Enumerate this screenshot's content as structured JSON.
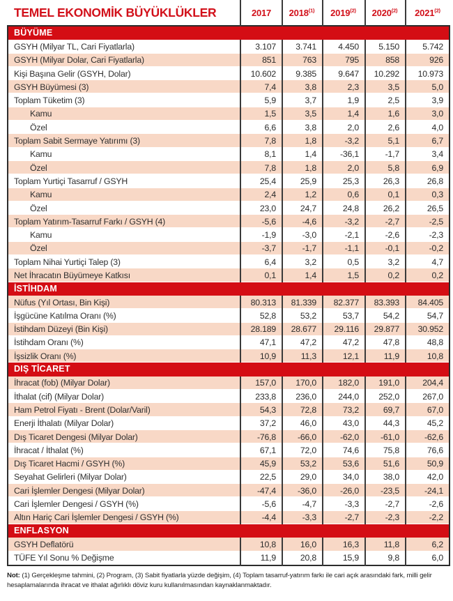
{
  "title": "TEMEL EKONOMİK BÜYÜKLÜKLER",
  "columns": [
    {
      "label": "2017",
      "sup": ""
    },
    {
      "label": "2018",
      "sup": "(1)"
    },
    {
      "label": "2019",
      "sup": "(2)"
    },
    {
      "label": "2020",
      "sup": "(2)"
    },
    {
      "label": "2021",
      "sup": "(2)"
    }
  ],
  "colors": {
    "accent_red": "#d2101a",
    "section_bar_red": "#d40d14",
    "row_pink": "#f8d8c6",
    "text": "#303030",
    "border_dark": "#2c2c2c"
  },
  "rows": [
    {
      "type": "section",
      "label": "BÜYÜME"
    },
    {
      "type": "data",
      "label": "GSYH (Milyar TL, Cari Fiyatlarla)",
      "indent": false,
      "values": [
        "3.107",
        "3.741",
        "4.450",
        "5.150",
        "5.742"
      ]
    },
    {
      "type": "data",
      "label": "GSYH (Milyar Dolar, Cari Fiyatlarla)",
      "indent": false,
      "values": [
        "851",
        "763",
        "795",
        "858",
        "926"
      ]
    },
    {
      "type": "data",
      "label": "Kişi Başına Gelir (GSYH, Dolar)",
      "indent": false,
      "values": [
        "10.602",
        "9.385",
        "9.647",
        "10.292",
        "10.973"
      ]
    },
    {
      "type": "data",
      "label": "GSYH Büyümesi (3)",
      "indent": false,
      "values": [
        "7,4",
        "3,8",
        "2,3",
        "3,5",
        "5,0"
      ]
    },
    {
      "type": "data",
      "label": "Toplam Tüketim (3)",
      "indent": false,
      "values": [
        "5,9",
        "3,7",
        "1,9",
        "2,5",
        "3,9"
      ]
    },
    {
      "type": "data",
      "label": "Kamu",
      "indent": true,
      "values": [
        "1,5",
        "3,5",
        "1,4",
        "1,6",
        "3,0"
      ]
    },
    {
      "type": "data",
      "label": "Özel",
      "indent": true,
      "values": [
        "6,6",
        "3,8",
        "2,0",
        "2,6",
        "4,0"
      ]
    },
    {
      "type": "data",
      "label": "Toplam Sabit Sermaye Yatırımı (3)",
      "indent": false,
      "values": [
        "7,8",
        "1,8",
        "-3,2",
        "5,1",
        "6,7"
      ]
    },
    {
      "type": "data",
      "label": "Kamu",
      "indent": true,
      "values": [
        "8,1",
        "1,4",
        "-36,1",
        "-1,7",
        "3,4"
      ]
    },
    {
      "type": "data",
      "label": "Özel",
      "indent": true,
      "values": [
        "7,8",
        "1,8",
        "2,0",
        "5,8",
        "6,9"
      ]
    },
    {
      "type": "data",
      "label": "Toplam Yurtiçi Tasarruf / GSYH",
      "indent": false,
      "values": [
        "25,4",
        "25,9",
        "25,3",
        "26,3",
        "26,8"
      ]
    },
    {
      "type": "data",
      "label": "Kamu",
      "indent": true,
      "values": [
        "2,4",
        "1,2",
        "0,6",
        "0,1",
        "0,3"
      ]
    },
    {
      "type": "data",
      "label": "Özel",
      "indent": true,
      "values": [
        "23,0",
        "24,7",
        "24,8",
        "26,2",
        "26,5"
      ]
    },
    {
      "type": "data",
      "label": "Toplam Yatırım-Tasarruf Farkı / GSYH (4)",
      "indent": false,
      "values": [
        "-5,6",
        "-4,6",
        "-3,2",
        "-2,7",
        "-2,5"
      ]
    },
    {
      "type": "data",
      "label": "Kamu",
      "indent": true,
      "values": [
        "-1,9",
        "-3,0",
        "-2,1",
        "-2,6",
        "-2,3"
      ]
    },
    {
      "type": "data",
      "label": "Özel",
      "indent": true,
      "values": [
        "-3,7",
        "-1,7",
        "-1,1",
        "-0,1",
        "-0,2"
      ]
    },
    {
      "type": "data",
      "label": "Toplam Nihai Yurtiçi Talep (3)",
      "indent": false,
      "values": [
        "6,4",
        "3,2",
        "0,5",
        "3,2",
        "4,7"
      ]
    },
    {
      "type": "data",
      "label": "Net İhracatın Büyümeye Katkısı",
      "indent": false,
      "values": [
        "0,1",
        "1,4",
        "1,5",
        "0,2",
        "0,2"
      ]
    },
    {
      "type": "section",
      "label": "İSTİHDAM"
    },
    {
      "type": "data",
      "label": "Nüfus (Yıl Ortası, Bin Kişi)",
      "indent": false,
      "values": [
        "80.313",
        "81.339",
        "82.377",
        "83.393",
        "84.405"
      ]
    },
    {
      "type": "data",
      "label": "İşgücüne Katılma Oranı (%)",
      "indent": false,
      "values": [
        "52,8",
        "53,2",
        "53,7",
        "54,2",
        "54,7"
      ]
    },
    {
      "type": "data",
      "label": "İstihdam Düzeyi (Bin Kişi)",
      "indent": false,
      "values": [
        "28.189",
        "28.677",
        "29.116",
        "29.877",
        "30.952"
      ]
    },
    {
      "type": "data",
      "label": "İstihdam Oranı (%)",
      "indent": false,
      "values": [
        "47,1",
        "47,2",
        "47,2",
        "47,8",
        "48,8"
      ]
    },
    {
      "type": "data",
      "label": "İşsizlik Oranı (%)",
      "indent": false,
      "values": [
        "10,9",
        "11,3",
        "12,1",
        "11,9",
        "10,8"
      ]
    },
    {
      "type": "section",
      "label": "DIŞ TİCARET"
    },
    {
      "type": "data",
      "label": "İhracat (fob) (Milyar Dolar)",
      "indent": false,
      "values": [
        "157,0",
        "170,0",
        "182,0",
        "191,0",
        "204,4"
      ]
    },
    {
      "type": "data",
      "label": "İthalat (cif) (Milyar Dolar)",
      "indent": false,
      "values": [
        "233,8",
        "236,0",
        "244,0",
        "252,0",
        "267,0"
      ]
    },
    {
      "type": "data",
      "label": "Ham Petrol Fiyatı - Brent (Dolar/Varil)",
      "indent": false,
      "values": [
        "54,3",
        "72,8",
        "73,2",
        "69,7",
        "67,0"
      ]
    },
    {
      "type": "data",
      "label": "Enerji İthalatı (Milyar Dolar)",
      "indent": false,
      "values": [
        "37,2",
        "46,0",
        "43,0",
        "44,3",
        "45,2"
      ]
    },
    {
      "type": "data",
      "label": "Dış Ticaret Dengesi (Milyar Dolar)",
      "indent": false,
      "values": [
        "-76,8",
        "-66,0",
        "-62,0",
        "-61,0",
        "-62,6"
      ]
    },
    {
      "type": "data",
      "label": "İhracat / İthalat (%)",
      "indent": false,
      "values": [
        "67,1",
        "72,0",
        "74,6",
        "75,8",
        "76,6"
      ]
    },
    {
      "type": "data",
      "label": "Dış Ticaret Hacmi / GSYH (%)",
      "indent": false,
      "values": [
        "45,9",
        "53,2",
        "53,6",
        "51,6",
        "50,9"
      ]
    },
    {
      "type": "data",
      "label": "Seyahat Gelirleri (Milyar Dolar)",
      "indent": false,
      "values": [
        "22,5",
        "29,0",
        "34,0",
        "38,0",
        "42,0"
      ]
    },
    {
      "type": "data",
      "label": "Cari İşlemler Dengesi (Milyar Dolar)",
      "indent": false,
      "values": [
        "-47,4",
        "-36,0",
        "-26,0",
        "-23,5",
        "-24,1"
      ]
    },
    {
      "type": "data",
      "label": "Cari İşlemler Dengesi / GSYH (%)",
      "indent": false,
      "values": [
        "-5,6",
        "-4,7",
        "-3,3",
        "-2,7",
        "-2,6"
      ]
    },
    {
      "type": "data",
      "label": "Altın Hariç Cari İşlemler Dengesi / GSYH (%)",
      "indent": false,
      "values": [
        "-4,4",
        "-3,3",
        "-2,7",
        "-2,3",
        "-2,2"
      ]
    },
    {
      "type": "section",
      "label": "ENFLASYON"
    },
    {
      "type": "data",
      "label": "GSYH Deflatörü",
      "indent": false,
      "values": [
        "10,8",
        "16,0",
        "16,3",
        "11,8",
        "6,2"
      ]
    },
    {
      "type": "data",
      "label": "TÜFE Yıl Sonu % Değişme",
      "indent": false,
      "values": [
        "11,9",
        "20,8",
        "15,9",
        "9,8",
        "6,0"
      ]
    }
  ],
  "footnote": {
    "label": "Not:",
    "text": " (1) Gerçekleşme tahmini, (2) Program, (3) Sabit fiyatlarla yüzde değişim, (4) Toplam tasarruf-yatırım farkı ile cari açık arasındaki fark, milli gelir hesaplamalarında ihracat ve ithalat ağırlıklı döviz kuru kullanılmasından kaynaklanmaktadır."
  }
}
